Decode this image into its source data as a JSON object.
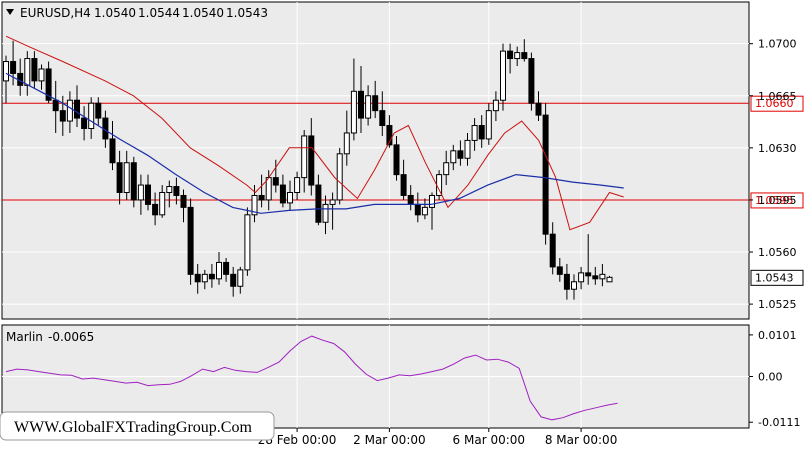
{
  "symbol_header": {
    "dropdown_icon": "triangle-down-icon",
    "symbol": "EURUSD,H4",
    "open": "1.0540",
    "high": "1.0544",
    "low": "1.0540",
    "close": "1.0543"
  },
  "indicator_header": {
    "name": "Marlin",
    "value": "-0.0065"
  },
  "watermark": "WWW.GlobalFXTradingGroup.Com",
  "colors": {
    "background": "#ffffff",
    "plot_bg": "#ebebeb",
    "grid": "#ffffff",
    "candle_up": "#ffffff",
    "candle_down": "#000000",
    "level_line": "#e00000",
    "ma_red": "#cc1111",
    "ma_blue": "#1a2ea8",
    "oscillator": "#a020c0"
  },
  "price_axis": {
    "ticks": [
      "1.0700",
      "1.0665",
      "1.0630",
      "1.0595",
      "1.0560",
      "1.0525"
    ],
    "level_labels": [
      "1.0660",
      "1.0595"
    ],
    "current_price_label": "1.0543"
  },
  "indicator_axis": {
    "ticks": [
      "0.0101",
      "0.00",
      "-0.0111"
    ]
  },
  "time_axis": {
    "labels": [
      "28 Feb 00:00",
      "2 Mar 00:00",
      "6 Mar 00:00",
      "8 Mar 00:00"
    ]
  },
  "chart_data": {
    "type": "candlestick",
    "levels": [
      1.066,
      1.0595
    ],
    "price_range": [
      1.0515,
      1.0728
    ],
    "candles": [
      [
        1.0675,
        1.0692,
        1.066,
        1.0688
      ],
      [
        1.0688,
        1.0702,
        1.0672,
        1.068
      ],
      [
        1.068,
        1.069,
        1.0665,
        1.0672
      ],
      [
        1.0672,
        1.0695,
        1.0665,
        1.069
      ],
      [
        1.069,
        1.0695,
        1.067,
        1.0675
      ],
      [
        1.0675,
        1.0686,
        1.0669,
        1.0683
      ],
      [
        1.0683,
        1.0688,
        1.066,
        1.0662
      ],
      [
        1.0662,
        1.0675,
        1.064,
        1.0655
      ],
      [
        1.0655,
        1.0665,
        1.0638,
        1.0648
      ],
      [
        1.0648,
        1.0668,
        1.064,
        1.0662
      ],
      [
        1.0662,
        1.0672,
        1.0644,
        1.065
      ],
      [
        1.065,
        1.0658,
        1.0635,
        1.0643
      ],
      [
        1.0643,
        1.0664,
        1.0636,
        1.066
      ],
      [
        1.066,
        1.0664,
        1.0645,
        1.065
      ],
      [
        1.065,
        1.0655,
        1.063,
        1.0636
      ],
      [
        1.0636,
        1.0648,
        1.0615,
        1.062
      ],
      [
        1.062,
        1.0628,
        1.0592,
        1.06
      ],
      [
        1.06,
        1.0628,
        1.0595,
        1.062
      ],
      [
        1.062,
        1.0624,
        1.059,
        1.0595
      ],
      [
        1.0595,
        1.0612,
        1.0585,
        1.0605
      ],
      [
        1.0605,
        1.0612,
        1.0588,
        1.0592
      ],
      [
        1.0592,
        1.06,
        1.0578,
        1.0585
      ],
      [
        1.0585,
        1.0605,
        1.0583,
        1.06
      ],
      [
        1.06,
        1.0608,
        1.059,
        1.0604
      ],
      [
        1.0604,
        1.061,
        1.0592,
        1.0598
      ],
      [
        1.0598,
        1.0602,
        1.058,
        1.059
      ],
      [
        1.059,
        1.0596,
        1.0538,
        1.0545
      ],
      [
        1.0545,
        1.0552,
        1.0532,
        1.054
      ],
      [
        1.054,
        1.0548,
        1.0535,
        1.0545
      ],
      [
        1.0545,
        1.0552,
        1.0536,
        1.0542
      ],
      [
        1.0542,
        1.056,
        1.0538,
        1.0553
      ],
      [
        1.0553,
        1.0556,
        1.054,
        1.0545
      ],
      [
        1.0545,
        1.055,
        1.053,
        1.0537
      ],
      [
        1.0537,
        1.055,
        1.0532,
        1.0548
      ],
      [
        1.0548,
        1.059,
        1.0544,
        1.0585
      ],
      [
        1.0585,
        1.0605,
        1.058,
        1.0598
      ],
      [
        1.0598,
        1.0612,
        1.059,
        1.0595
      ],
      [
        1.0595,
        1.0615,
        1.0588,
        1.061
      ],
      [
        1.061,
        1.0622,
        1.06,
        1.0605
      ],
      [
        1.0605,
        1.0612,
        1.059,
        1.0593
      ],
      [
        1.0593,
        1.0608,
        1.0588,
        1.06
      ],
      [
        1.06,
        1.0614,
        1.0595,
        1.061
      ],
      [
        1.061,
        1.0642,
        1.06,
        1.0638
      ],
      [
        1.0638,
        1.065,
        1.0598,
        1.0605
      ],
      [
        1.0605,
        1.0612,
        1.0578,
        1.058
      ],
      [
        1.058,
        1.0598,
        1.0572,
        1.0592
      ],
      [
        1.0592,
        1.06,
        1.0575,
        1.0595
      ],
      [
        1.0595,
        1.063,
        1.0592,
        1.0626
      ],
      [
        1.0626,
        1.0655,
        1.0618,
        1.064
      ],
      [
        1.064,
        1.069,
        1.0635,
        1.0668
      ],
      [
        1.0668,
        1.0685,
        1.064,
        1.065
      ],
      [
        1.065,
        1.0672,
        1.0645,
        1.0665
      ],
      [
        1.0665,
        1.0675,
        1.065,
        1.0655
      ],
      [
        1.0655,
        1.0668,
        1.0638,
        1.0645
      ],
      [
        1.0645,
        1.0652,
        1.063,
        1.0632
      ],
      [
        1.0632,
        1.0638,
        1.0608,
        1.0612
      ],
      [
        1.0612,
        1.0622,
        1.0595,
        1.0598
      ],
      [
        1.0598,
        1.0605,
        1.0588,
        1.0592
      ],
      [
        1.0592,
        1.06,
        1.058,
        1.0585
      ],
      [
        1.0585,
        1.0596,
        1.0582,
        1.059
      ],
      [
        1.059,
        1.06,
        1.0575,
        1.0598
      ],
      [
        1.0598,
        1.0615,
        1.0595,
        1.0612
      ],
      [
        1.0612,
        1.0628,
        1.0605,
        1.062
      ],
      [
        1.062,
        1.0632,
        1.0615,
        1.0628
      ],
      [
        1.0628,
        1.0635,
        1.0618,
        1.0623
      ],
      [
        1.0623,
        1.064,
        1.0618,
        1.0635
      ],
      [
        1.0635,
        1.065,
        1.0628,
        1.0645
      ],
      [
        1.0645,
        1.0652,
        1.063,
        1.0636
      ],
      [
        1.0636,
        1.066,
        1.0632,
        1.0655
      ],
      [
        1.0655,
        1.0668,
        1.0648,
        1.0662
      ],
      [
        1.0662,
        1.07,
        1.0655,
        1.0695
      ],
      [
        1.0695,
        1.07,
        1.068,
        1.069
      ],
      [
        1.069,
        1.0698,
        1.0685,
        1.0694
      ],
      [
        1.0694,
        1.0703,
        1.0688,
        1.069
      ],
      [
        1.069,
        1.0694,
        1.0655,
        1.066
      ],
      [
        1.066,
        1.0668,
        1.0648,
        1.0652
      ],
      [
        1.0652,
        1.066,
        1.0565,
        1.0572
      ],
      [
        1.0572,
        1.058,
        1.0545,
        1.055
      ],
      [
        1.055,
        1.0556,
        1.054,
        1.0545
      ],
      [
        1.0545,
        1.0552,
        1.0528,
        1.0535
      ],
      [
        1.0535,
        1.0545,
        1.0528,
        1.054
      ],
      [
        1.054,
        1.055,
        1.0535,
        1.0546
      ],
      [
        1.0546,
        1.0572,
        1.0538,
        1.0544
      ],
      [
        1.0544,
        1.055,
        1.0538,
        1.0542
      ],
      [
        1.0542,
        1.0552,
        1.0537,
        1.0545
      ],
      [
        1.054,
        1.0544,
        1.054,
        1.0543
      ]
    ],
    "ma_fast": [
      [
        1.0705,
        0
      ],
      [
        1.0698,
        8
      ],
      [
        1.0688,
        20
      ],
      [
        1.0675,
        35
      ],
      [
        1.0665,
        45
      ],
      [
        1.065,
        55
      ],
      [
        1.063,
        65
      ],
      [
        1.0618,
        75
      ],
      [
        1.0605,
        85
      ],
      [
        1.06,
        88
      ],
      [
        1.0608,
        92
      ],
      [
        1.063,
        100
      ],
      [
        1.063,
        108
      ],
      [
        1.061,
        116
      ],
      [
        1.0596,
        124
      ],
      [
        1.0615,
        130
      ],
      [
        1.064,
        137
      ],
      [
        1.0645,
        142
      ],
      [
        1.062,
        148
      ],
      [
        1.059,
        156
      ],
      [
        1.0605,
        163
      ],
      [
        1.0625,
        170
      ],
      [
        1.064,
        176
      ],
      [
        1.0648,
        182
      ],
      [
        1.0635,
        188
      ],
      [
        1.061,
        194
      ],
      [
        1.0575,
        199
      ],
      [
        1.058,
        206
      ],
      [
        1.06,
        213
      ],
      [
        1.0597,
        218
      ]
    ],
    "ma_slow": [
      [
        1.068,
        0
      ],
      [
        1.067,
        10
      ],
      [
        1.066,
        20
      ],
      [
        1.0648,
        30
      ],
      [
        1.0636,
        40
      ],
      [
        1.0625,
        50
      ],
      [
        1.0612,
        60
      ],
      [
        1.06,
        70
      ],
      [
        1.059,
        80
      ],
      [
        1.0586,
        90
      ],
      [
        1.0588,
        100
      ],
      [
        1.0589,
        110
      ],
      [
        1.0589,
        120
      ],
      [
        1.0592,
        130
      ],
      [
        1.0592,
        140
      ],
      [
        1.0592,
        150
      ],
      [
        1.0596,
        160
      ],
      [
        1.0605,
        170
      ],
      [
        1.0612,
        180
      ],
      [
        1.061,
        190
      ],
      [
        1.0607,
        200
      ],
      [
        1.0605,
        210
      ],
      [
        1.0603,
        218
      ]
    ],
    "oscillator": [
      [
        0,
        0.0012
      ],
      [
        2,
        0.0018
      ],
      [
        4,
        0.0016
      ],
      [
        6,
        0.0012
      ],
      [
        8,
        0.0008
      ],
      [
        10,
        0.0004
      ],
      [
        12,
        0.0003
      ],
      [
        14,
        -0.0006
      ],
      [
        16,
        -0.0004
      ],
      [
        18,
        -0.0008
      ],
      [
        20,
        -0.0012
      ],
      [
        22,
        -0.0016
      ],
      [
        24,
        -0.0014
      ],
      [
        26,
        -0.0022
      ],
      [
        28,
        -0.002
      ],
      [
        30,
        -0.0019
      ],
      [
        32,
        -0.0012
      ],
      [
        34,
        0.0002
      ],
      [
        36,
        0.0018
      ],
      [
        38,
        0.0012
      ],
      [
        40,
        0.0022
      ],
      [
        42,
        0.0015
      ],
      [
        44,
        0.0012
      ],
      [
        46,
        0.001
      ],
      [
        48,
        0.0022
      ],
      [
        50,
        0.0035
      ],
      [
        52,
        0.0062
      ],
      [
        54,
        0.0085
      ],
      [
        56,
        0.0098
      ],
      [
        58,
        0.0088
      ],
      [
        60,
        0.008
      ],
      [
        62,
        0.006
      ],
      [
        64,
        0.003
      ],
      [
        66,
        0.0005
      ],
      [
        68,
        -0.001
      ],
      [
        70,
        -0.0004
      ],
      [
        72,
        0.0004
      ],
      [
        74,
        0.0002
      ],
      [
        76,
        0.0006
      ],
      [
        78,
        0.0012
      ],
      [
        80,
        0.0018
      ],
      [
        82,
        0.003
      ],
      [
        84,
        0.0045
      ],
      [
        86,
        0.0052
      ],
      [
        88,
        0.004
      ],
      [
        90,
        0.0042
      ],
      [
        92,
        0.0035
      ],
      [
        94,
        0.002
      ],
      [
        96,
        -0.006
      ],
      [
        98,
        -0.0098
      ],
      [
        100,
        -0.0105
      ],
      [
        102,
        -0.01
      ],
      [
        104,
        -0.009
      ],
      [
        106,
        -0.0082
      ],
      [
        108,
        -0.0076
      ],
      [
        110,
        -0.007
      ],
      [
        112,
        -0.0065
      ]
    ]
  }
}
